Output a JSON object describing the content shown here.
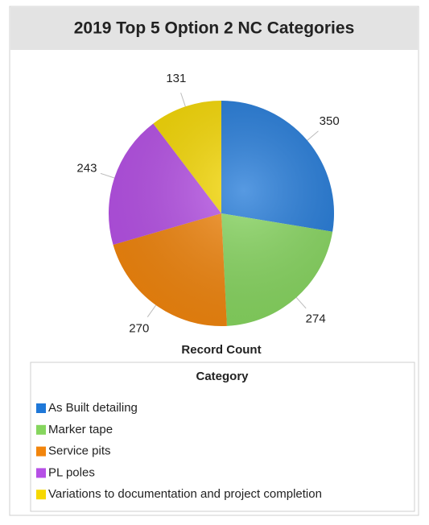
{
  "chart_data": {
    "type": "pie",
    "title": "2019 Top 5 Option 2 NC Categories",
    "measure_label": "Record Count",
    "legend_title": "Category",
    "categories": [
      "As Built detailing",
      "Marker tape",
      "Service pits",
      "PL poles",
      "Variations to documentation and project completion"
    ],
    "values": [
      350,
      274,
      270,
      243,
      131
    ],
    "colors": [
      "#1f78d8",
      "#86d65e",
      "#f2850c",
      "#b650e6",
      "#f6d800"
    ]
  }
}
